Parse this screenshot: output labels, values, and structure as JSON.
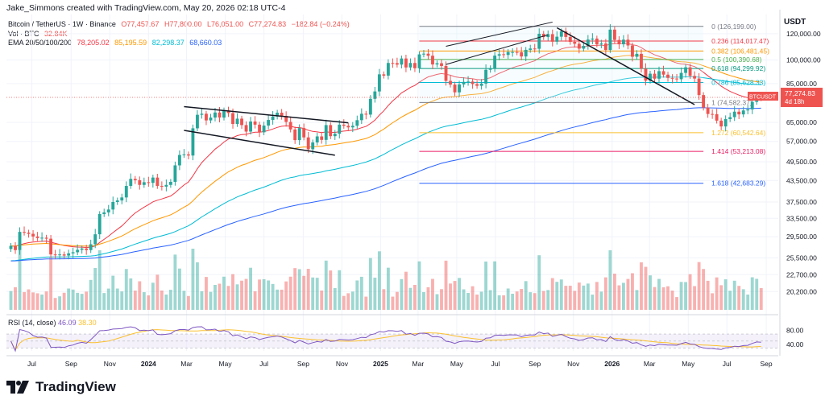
{
  "header": {
    "title": "Jake_Simmons created with TradingView.com, May 20, 2026 02:18 UTC-4"
  },
  "legend": {
    "symbol": "Bitcoin / TetherUS · 1W · Binance",
    "ohlc": {
      "o": "O77,457.67",
      "h": "H77,800.00",
      "l": "L76,051.00",
      "c": "C77,274.83",
      "chg": "−182.84 (−0.24%)"
    },
    "vol_label": "Vol · BTC",
    "vol_value": "32.84K",
    "ema_label": "EMA 20/50/100/200",
    "ema_values": [
      "78,205.02",
      "85,195.59",
      "82,298.37",
      "68,660.03"
    ]
  },
  "rsi": {
    "label": "RSI (14, close)",
    "v1": "46.09",
    "v2": "38.30"
  },
  "footer": {
    "brand": "TradingView"
  },
  "colors": {
    "up": "#26a69a",
    "down": "#ef5350",
    "ema20": "#f23645",
    "ema50": "#ff9800",
    "ema100": "#00bcd4",
    "ema200": "#2962ff",
    "rsi": "#7e57c2",
    "rsi_ma": "#fbc02d",
    "rsi_band": "#ede7f6"
  },
  "chart_data": {
    "type": "candlestick",
    "title": "Bitcoin / TetherUS · 1W · Binance",
    "price_axis": {
      "title": "USDT",
      "scale": "log",
      "ticks": [
        "120,000.00",
        "100,000.00",
        "85,000.00",
        "65,000.00",
        "57,000.00",
        "49,500.00",
        "43,500.00",
        "37,500.00",
        "33,500.00",
        "29,500.00",
        "25,500.00",
        "22,700.00",
        "20,200.00"
      ],
      "tick_values": [
        120000,
        100000,
        85000,
        65000,
        57000,
        49500,
        43500,
        37500,
        33500,
        29500,
        25500,
        22700,
        20200
      ],
      "range": [
        17800,
        137000
      ]
    },
    "rsi_axis": {
      "ticks": [
        "80.00",
        "40.00"
      ],
      "tick_values": [
        80,
        40
      ],
      "range": [
        22,
        100
      ]
    },
    "x_axis": {
      "ticks": [
        "Jul",
        "Sep",
        "Nov",
        "2024",
        "Mar",
        "May",
        "Jul",
        "Sep",
        "Nov",
        "2025",
        "Mar",
        "May",
        "Jul",
        "Sep",
        "Nov",
        "2026",
        "Mar",
        "May",
        "Jul",
        "Sep"
      ],
      "tick_dates": [
        "2023-07-01",
        "2023-09-01",
        "2023-11-01",
        "2024-01-01",
        "2024-03-01",
        "2024-05-01",
        "2024-07-01",
        "2024-09-01",
        "2024-11-01",
        "2025-01-01",
        "2025-03-01",
        "2025-05-01",
        "2025-07-01",
        "2025-09-01",
        "2025-11-01",
        "2026-01-01",
        "2026-03-01",
        "2026-05-01",
        "2026-07-01",
        "2026-09-01"
      ],
      "range": [
        "2023-05-22",
        "2026-09-20"
      ]
    },
    "series": [
      {
        "name": "BTCUSDT",
        "start_date": "2023-05-29",
        "interval": "1W",
        "close": [
          27700,
          26900,
          30500,
          30350,
          30100,
          29550,
          29230,
          29300,
          29100,
          26100,
          26050,
          26100,
          25900,
          26300,
          26500,
          26950,
          27200,
          26900,
          28000,
          30000,
          34500,
          34900,
          35600,
          37500,
          37900,
          38700,
          41900,
          44000,
          43600,
          42200,
          43000,
          42800,
          44400,
          41900,
          41700,
          42200,
          43100,
          48300,
          51900,
          52100,
          51700,
          62400,
          68500,
          69000,
          65900,
          67200,
          69600,
          67200,
          70600,
          69300,
          64300,
          66700,
          63800,
          61000,
          65400,
          64000,
          60700,
          63600,
          66100,
          67700,
          69500,
          68000,
          65200,
          61900,
          57500,
          62500,
          58600,
          54000,
          56600,
          59000,
          57600,
          63800,
          59100,
          60100,
          64000,
          63500,
          62800,
          63500,
          66000,
          69000,
          68600,
          76500,
          80500,
          90600,
          89800,
          98000,
          97900,
          96900,
          101100,
          95000,
          98000,
          94500,
          104000,
          104500,
          103000,
          97000,
          97800,
          96000,
          86600,
          84400,
          80000,
          84500,
          86000,
          86200,
          84700,
          83700,
          85000,
          93500,
          94500,
          103100,
          104100,
          103600,
          105700,
          105700,
          105500,
          102500,
          107300,
          108300,
          108100,
          119900,
          117200,
          119600,
          113500,
          117500,
          121900,
          117300,
          113400,
          111900,
          108200,
          110300,
          115200,
          116000,
          111400,
          112100,
          107200,
          123400,
          114900,
          111500,
          115100,
          110600,
          102300,
          104400,
          94200,
          86700,
          91000,
          87900,
          92600,
          90400,
          88400,
          88000,
          87600,
          91500,
          95100,
          89600,
          88000,
          78500,
          72000,
          68900,
          68800,
          65800,
          63200,
          66500,
          67400,
          70000,
          68700,
          70600,
          71100,
          74900,
          78200,
          77260
        ]
      },
      {
        "name": "EMA 20",
        "last": 78205.02
      },
      {
        "name": "EMA 50",
        "last": 85195.59
      },
      {
        "name": "EMA 100",
        "last": 82298.37
      },
      {
        "name": "EMA 200",
        "last": 68660.03
      }
    ],
    "fibonacci": [
      {
        "label": "0 (126,199.00)",
        "value": 126199.0
      },
      {
        "label": "0.236 (114,017.47)",
        "value": 114017.47
      },
      {
        "label": "0.382 (106,481.45)",
        "value": 106481.45
      },
      {
        "label": "0.5 (100,390.68)",
        "value": 100390.68
      },
      {
        "label": "0.618 (94,299.92)",
        "value": 94299.92
      },
      {
        "label": "0.786 (85,628.33)",
        "value": 85628.33
      },
      {
        "label": "1 (74,582.37)",
        "value": 74582.37
      },
      {
        "label": "1.272 (60,542.64)",
        "value": 60542.64
      },
      {
        "label": "1.414 (53,213.08)",
        "value": 53213.08
      },
      {
        "label": "1.618 (42,683.29)",
        "value": 42683.29
      }
    ],
    "price_tag": {
      "symbol": "BTCUSDT",
      "price": "77,274.83",
      "countdown": "4d 18h"
    }
  }
}
